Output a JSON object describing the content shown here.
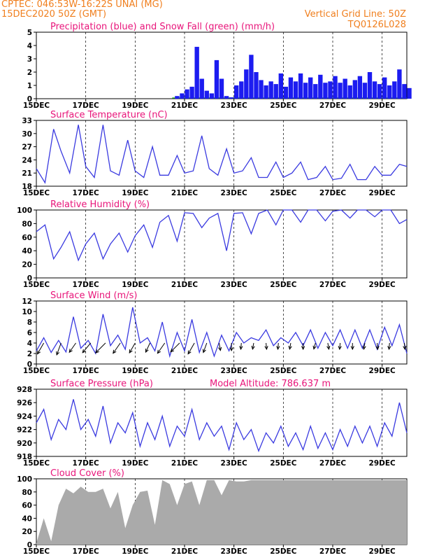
{
  "header": {
    "line1_left": "CPTEC:   046:53W-16:22S   UNAI (MG)",
    "line2_left": "15DEC2020 50Z (GMT)",
    "line1_right": "Vertical Grid Line: 50Z",
    "line2_right": "TQ0126L028",
    "color": "#f07f1e"
  },
  "x_labels": [
    "15DEC",
    "17DEC",
    "19DEC",
    "21DEC",
    "23DEC",
    "25DEC",
    "27DEC",
    "29DEC"
  ],
  "colors": {
    "line": "#3a3ae0",
    "precip": "#1c1cf0",
    "snow": "#22aa22",
    "cloud": "#aaaaaa",
    "arrow": "#000000",
    "title": "#e8157a"
  },
  "chart_data": [
    {
      "type": "bar",
      "title": "Precipitation (blue) and Snow Fall (green) (mm/h)",
      "ylim": [
        0,
        5
      ],
      "yticks": [
        "0",
        "1",
        "2",
        "3",
        "4",
        "5"
      ],
      "x_days": [
        5.7,
        5.9,
        6.1,
        6.3,
        6.5,
        6.7,
        6.9,
        7.1,
        7.3,
        7.5,
        7.7,
        7.9,
        8.1,
        8.3,
        8.5,
        8.7,
        8.9,
        9.1,
        9.3,
        9.5,
        9.7,
        9.9,
        10.1,
        10.3,
        10.5,
        10.7,
        10.9,
        11.1,
        11.3,
        11.5,
        11.7,
        11.9,
        12.1,
        12.3,
        12.5,
        12.7,
        12.9,
        13.1,
        13.3,
        13.5,
        13.7,
        13.9,
        14.1,
        14.3,
        14.5,
        14.7,
        14.9,
        15.1
      ],
      "values": [
        0.2,
        0.4,
        0.7,
        0.9,
        3.9,
        1.5,
        0.6,
        0.4,
        2.9,
        1.5,
        0.2,
        0.1,
        1.0,
        1.3,
        2.2,
        3.3,
        2.0,
        1.4,
        1.0,
        1.3,
        1.1,
        1.9,
        0.9,
        1.6,
        1.3,
        1.9,
        1.2,
        1.6,
        1.1,
        1.8,
        1.2,
        1.3,
        1.7,
        1.2,
        1.5,
        1.0,
        1.4,
        1.7,
        1.2,
        2.0,
        1.3,
        1.1,
        1.6,
        1.0,
        1.3,
        2.2,
        1.1,
        0.8
      ],
      "snow": 0
    },
    {
      "type": "line",
      "title": "Surface Temperature (nC)",
      "ylim": [
        18,
        33
      ],
      "yticks": [
        "18",
        "21",
        "24",
        "27",
        "30",
        "33"
      ],
      "x_days": [
        0,
        0.35,
        0.7,
        1.0,
        1.35,
        1.7,
        2.0,
        2.35,
        2.7,
        3.0,
        3.35,
        3.7,
        4.0,
        4.35,
        4.7,
        5.0,
        5.35,
        5.7,
        6.0,
        6.35,
        6.7,
        7.0,
        7.35,
        7.7,
        8.0,
        8.35,
        8.7,
        9.0,
        9.35,
        9.7,
        10.0,
        10.35,
        10.7,
        11.0,
        11.35,
        11.7,
        12.0,
        12.35,
        12.7,
        13.0,
        13.35,
        13.7,
        14.0,
        14.35,
        14.7,
        15.0
      ],
      "values": [
        22.0,
        18.8,
        31.0,
        26.0,
        21.0,
        32.0,
        22.5,
        20.0,
        32.0,
        21.5,
        20.5,
        28.5,
        21.5,
        20.0,
        27.0,
        20.5,
        20.5,
        25.0,
        21.0,
        21.5,
        29.5,
        22.0,
        20.5,
        26.5,
        21.0,
        21.5,
        24.5,
        20.0,
        20.0,
        23.5,
        20.0,
        21.0,
        23.5,
        19.5,
        20.0,
        22.5,
        19.5,
        19.8,
        23.0,
        19.5,
        19.5,
        22.5,
        20.5,
        20.5,
        23.0,
        22.5
      ]
    },
    {
      "type": "line",
      "title": "Relative Humidity (%)",
      "ylim": [
        0,
        100
      ],
      "yticks": [
        "0",
        "20",
        "40",
        "60",
        "80",
        "100"
      ],
      "x_days": [
        0,
        0.35,
        0.7,
        1.0,
        1.35,
        1.7,
        2.0,
        2.35,
        2.7,
        3.0,
        3.35,
        3.7,
        4.0,
        4.35,
        4.7,
        5.0,
        5.35,
        5.7,
        6.0,
        6.35,
        6.7,
        7.0,
        7.35,
        7.7,
        8.0,
        8.35,
        8.7,
        9.0,
        9.35,
        9.7,
        10.0,
        10.35,
        10.7,
        11.0,
        11.35,
        11.7,
        12.0,
        12.35,
        12.7,
        13.0,
        13.35,
        13.7,
        14.0,
        14.35,
        14.7,
        15.0
      ],
      "values": [
        68,
        78,
        28,
        45,
        68,
        26,
        50,
        66,
        28,
        50,
        66,
        38,
        62,
        78,
        45,
        82,
        92,
        54,
        96,
        95,
        74,
        88,
        95,
        40,
        95,
        96,
        65,
        95,
        100,
        78,
        100,
        100,
        82,
        100,
        100,
        84,
        98,
        100,
        88,
        100,
        100,
        90,
        100,
        100,
        80,
        86
      ]
    },
    {
      "type": "line",
      "title": "Surface Wind (m/s)",
      "ylim": [
        0,
        12
      ],
      "yticks": [
        "0",
        "2",
        "4",
        "6",
        "8",
        "10",
        "12"
      ],
      "x_days": [
        0,
        0.3,
        0.6,
        0.9,
        1.2,
        1.5,
        1.8,
        2.1,
        2.4,
        2.7,
        3.0,
        3.3,
        3.6,
        3.9,
        4.2,
        4.5,
        4.8,
        5.1,
        5.4,
        5.7,
        6.0,
        6.3,
        6.6,
        6.9,
        7.2,
        7.5,
        7.8,
        8.1,
        8.4,
        8.7,
        9.0,
        9.3,
        9.6,
        9.9,
        10.2,
        10.5,
        10.8,
        11.1,
        11.4,
        11.7,
        12.0,
        12.3,
        12.6,
        12.9,
        13.2,
        13.5,
        13.8,
        14.1,
        14.4,
        14.7,
        15.0
      ],
      "values": [
        2.5,
        5.0,
        2.2,
        4.5,
        2.3,
        9.0,
        3.0,
        4.5,
        2.0,
        9.5,
        3.5,
        5.5,
        2.8,
        10.8,
        4.0,
        5.0,
        2.5,
        8.0,
        1.5,
        6.0,
        2.5,
        8.5,
        2.2,
        6.0,
        1.5,
        5.5,
        2.5,
        6.0,
        4.0,
        5.0,
        4.5,
        6.5,
        3.5,
        5.0,
        4.0,
        6.0,
        3.5,
        6.5,
        3.0,
        6.0,
        3.5,
        6.5,
        3.0,
        6.5,
        3.0,
        6.5,
        2.8,
        7.0,
        3.5,
        7.5,
        2.0
      ],
      "arrow_x_days": [
        0.3,
        1.0,
        1.6,
        2.2,
        2.8,
        3.4,
        4.0,
        4.6,
        5.2,
        5.8,
        6.4,
        6.9,
        7.4,
        7.9,
        8.3,
        8.8,
        9.3,
        9.8,
        10.3,
        10.8,
        11.3,
        11.8,
        12.3,
        12.8,
        13.3,
        13.8,
        14.3,
        14.9
      ],
      "arrow_angles": [
        210,
        200,
        215,
        220,
        225,
        215,
        210,
        205,
        215,
        225,
        210,
        200,
        170,
        180,
        185,
        190,
        175,
        185,
        190,
        180,
        195,
        170,
        185,
        180,
        190,
        175,
        185,
        175
      ],
      "arrow_len": [
        1,
        1,
        0.9,
        1,
        1.1,
        1,
        0.9,
        0.8,
        1,
        1,
        1,
        0.8,
        0.6,
        0.6,
        0.5,
        0.5,
        0.5,
        0.5,
        0.5,
        0.5,
        0.5,
        0.5,
        0.5,
        0.5,
        0.5,
        0.5,
        0.5,
        0.5
      ]
    },
    {
      "type": "line",
      "title": "Surface Pressure (hPa)",
      "annotation": "Model Altitude: 786.637 m",
      "ylim": [
        918,
        928
      ],
      "yticks": [
        "918",
        "920",
        "922",
        "924",
        "926",
        "928"
      ],
      "x_days": [
        0,
        0.3,
        0.6,
        0.9,
        1.2,
        1.5,
        1.8,
        2.1,
        2.4,
        2.7,
        3.0,
        3.3,
        3.6,
        3.9,
        4.2,
        4.5,
        4.8,
        5.1,
        5.4,
        5.7,
        6.0,
        6.3,
        6.6,
        6.9,
        7.2,
        7.5,
        7.8,
        8.1,
        8.4,
        8.7,
        9.0,
        9.3,
        9.6,
        9.9,
        10.2,
        10.5,
        10.8,
        11.1,
        11.4,
        11.7,
        12.0,
        12.3,
        12.6,
        12.9,
        13.2,
        13.5,
        13.8,
        14.1,
        14.4,
        14.7,
        15.0
      ],
      "values": [
        923.0,
        925.0,
        920.5,
        923.5,
        922.0,
        926.5,
        922.0,
        923.5,
        921.0,
        925.5,
        920.0,
        923.0,
        921.5,
        924.5,
        919.5,
        923.0,
        920.5,
        924.0,
        919.5,
        922.5,
        921.0,
        925.0,
        920.5,
        923.0,
        921.0,
        922.5,
        919.0,
        923.0,
        920.5,
        922.0,
        918.8,
        921.5,
        920.0,
        922.5,
        919.5,
        921.5,
        919.0,
        922.5,
        919.2,
        921.5,
        919.0,
        922.0,
        919.5,
        922.5,
        920.0,
        922.5,
        919.5,
        923.0,
        921.0,
        926.0,
        921.5
      ]
    },
    {
      "type": "area",
      "title": "Cloud Cover (%)",
      "ylim": [
        0,
        100
      ],
      "yticks": [
        "0",
        "20",
        "40",
        "60",
        "80",
        "100"
      ],
      "x_days": [
        0,
        0.3,
        0.6,
        0.9,
        1.2,
        1.5,
        1.8,
        2.1,
        2.4,
        2.7,
        3.0,
        3.3,
        3.6,
        3.9,
        4.2,
        4.5,
        4.8,
        5.1,
        5.4,
        5.7,
        6.0,
        6.3,
        6.6,
        6.9,
        7.2,
        7.5,
        7.8,
        8.1,
        8.4,
        8.7,
        9.0,
        9.3,
        9.6,
        9.9,
        10.2,
        10.5,
        10.8,
        11.1,
        11.4,
        11.7,
        12.0,
        12.3,
        12.6,
        12.9,
        13.2,
        13.5,
        13.8,
        14.1,
        14.4,
        14.7,
        15.0
      ],
      "values": [
        2,
        40,
        5,
        60,
        85,
        78,
        88,
        80,
        80,
        85,
        55,
        80,
        25,
        60,
        80,
        82,
        30,
        98,
        92,
        60,
        92,
        96,
        60,
        98,
        98,
        75,
        98,
        96,
        96,
        98,
        98,
        98,
        98,
        98,
        98,
        98,
        98,
        98,
        98,
        98,
        98,
        98,
        98,
        98,
        98,
        98,
        98,
        98,
        98,
        98,
        98
      ]
    }
  ]
}
